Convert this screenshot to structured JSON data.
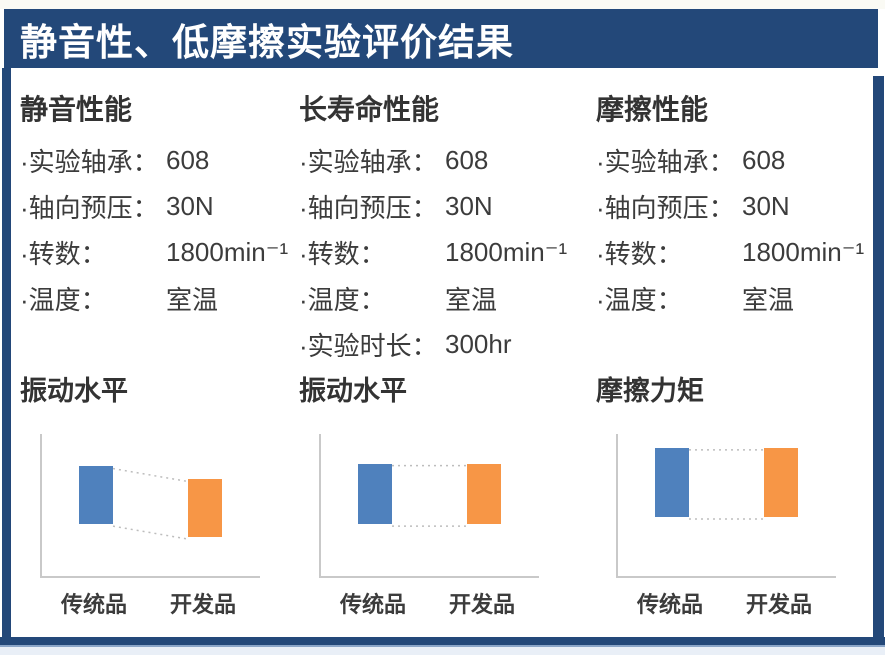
{
  "page": {
    "title": "静音性、低摩擦实验评价结果"
  },
  "colors": {
    "frame_navy": "#234879",
    "bar_blue": "#4F81BD",
    "bar_orange": "#F79646",
    "text": "#3C3C3C"
  },
  "panels": [
    {
      "heading": "静音性能",
      "specs": [
        {
          "label": "·实验轴承：",
          "value": "608"
        },
        {
          "label": "·轴向预压：",
          "value": "30N"
        },
        {
          "label": "·转数：",
          "value": "1800min⁻¹"
        },
        {
          "label": "·温度：",
          "value": "室温"
        }
      ]
    },
    {
      "heading": "长寿命性能",
      "specs": [
        {
          "label": "·实验轴承：",
          "value": "608"
        },
        {
          "label": "·轴向预压：",
          "value": "30N"
        },
        {
          "label": "·转数：",
          "value": "1800min⁻¹"
        },
        {
          "label": "·温度：",
          "value": "室温"
        },
        {
          "label": "·实验时长：",
          "value": "300hr"
        }
      ]
    },
    {
      "heading": "摩擦性能",
      "specs": [
        {
          "label": "·实验轴承：",
          "value": "608"
        },
        {
          "label": "·轴向预压：",
          "value": "30N"
        },
        {
          "label": "·转数：",
          "value": "1800min⁻¹"
        },
        {
          "label": "·温度：",
          "value": "室温"
        }
      ]
    }
  ],
  "chart_data": [
    {
      "type": "floating-bar",
      "title": "振动水平",
      "categories": [
        "传统品",
        "开发品"
      ],
      "bars": [
        {
          "from": 0.36,
          "to": 0.76
        },
        {
          "from": 0.27,
          "to": 0.67
        }
      ],
      "colors": [
        "#4F81BD",
        "#F79646"
      ],
      "ylim": [
        0,
        1
      ],
      "axis_ticks": "none (qualitative comparison, values are fractions of plot height)",
      "connectors": "dashed lines join bar tops and bottoms",
      "grid": "off",
      "legend": "none"
    },
    {
      "type": "floating-bar",
      "title": "振动水平",
      "categories": [
        "传统品",
        "开发品"
      ],
      "bars": [
        {
          "from": 0.36,
          "to": 0.78
        },
        {
          "from": 0.36,
          "to": 0.78
        }
      ],
      "colors": [
        "#4F81BD",
        "#F79646"
      ],
      "ylim": [
        0,
        1
      ],
      "axis_ticks": "none (qualitative comparison, values are fractions of plot height)",
      "connectors": "dashed lines join bar tops and bottoms",
      "grid": "off",
      "legend": "none"
    },
    {
      "type": "floating-bar",
      "title": "摩擦力矩",
      "categories": [
        "传统品",
        "开发品"
      ],
      "bars": [
        {
          "from": 0.41,
          "to": 0.89
        },
        {
          "from": 0.41,
          "to": 0.89
        }
      ],
      "colors": [
        "#4F81BD",
        "#F79646"
      ],
      "ylim": [
        0,
        1
      ],
      "axis_ticks": "none (qualitative comparison, values are fractions of plot height)",
      "connectors": "dashed lines join bar tops and bottoms",
      "grid": "off",
      "legend": "none"
    }
  ]
}
